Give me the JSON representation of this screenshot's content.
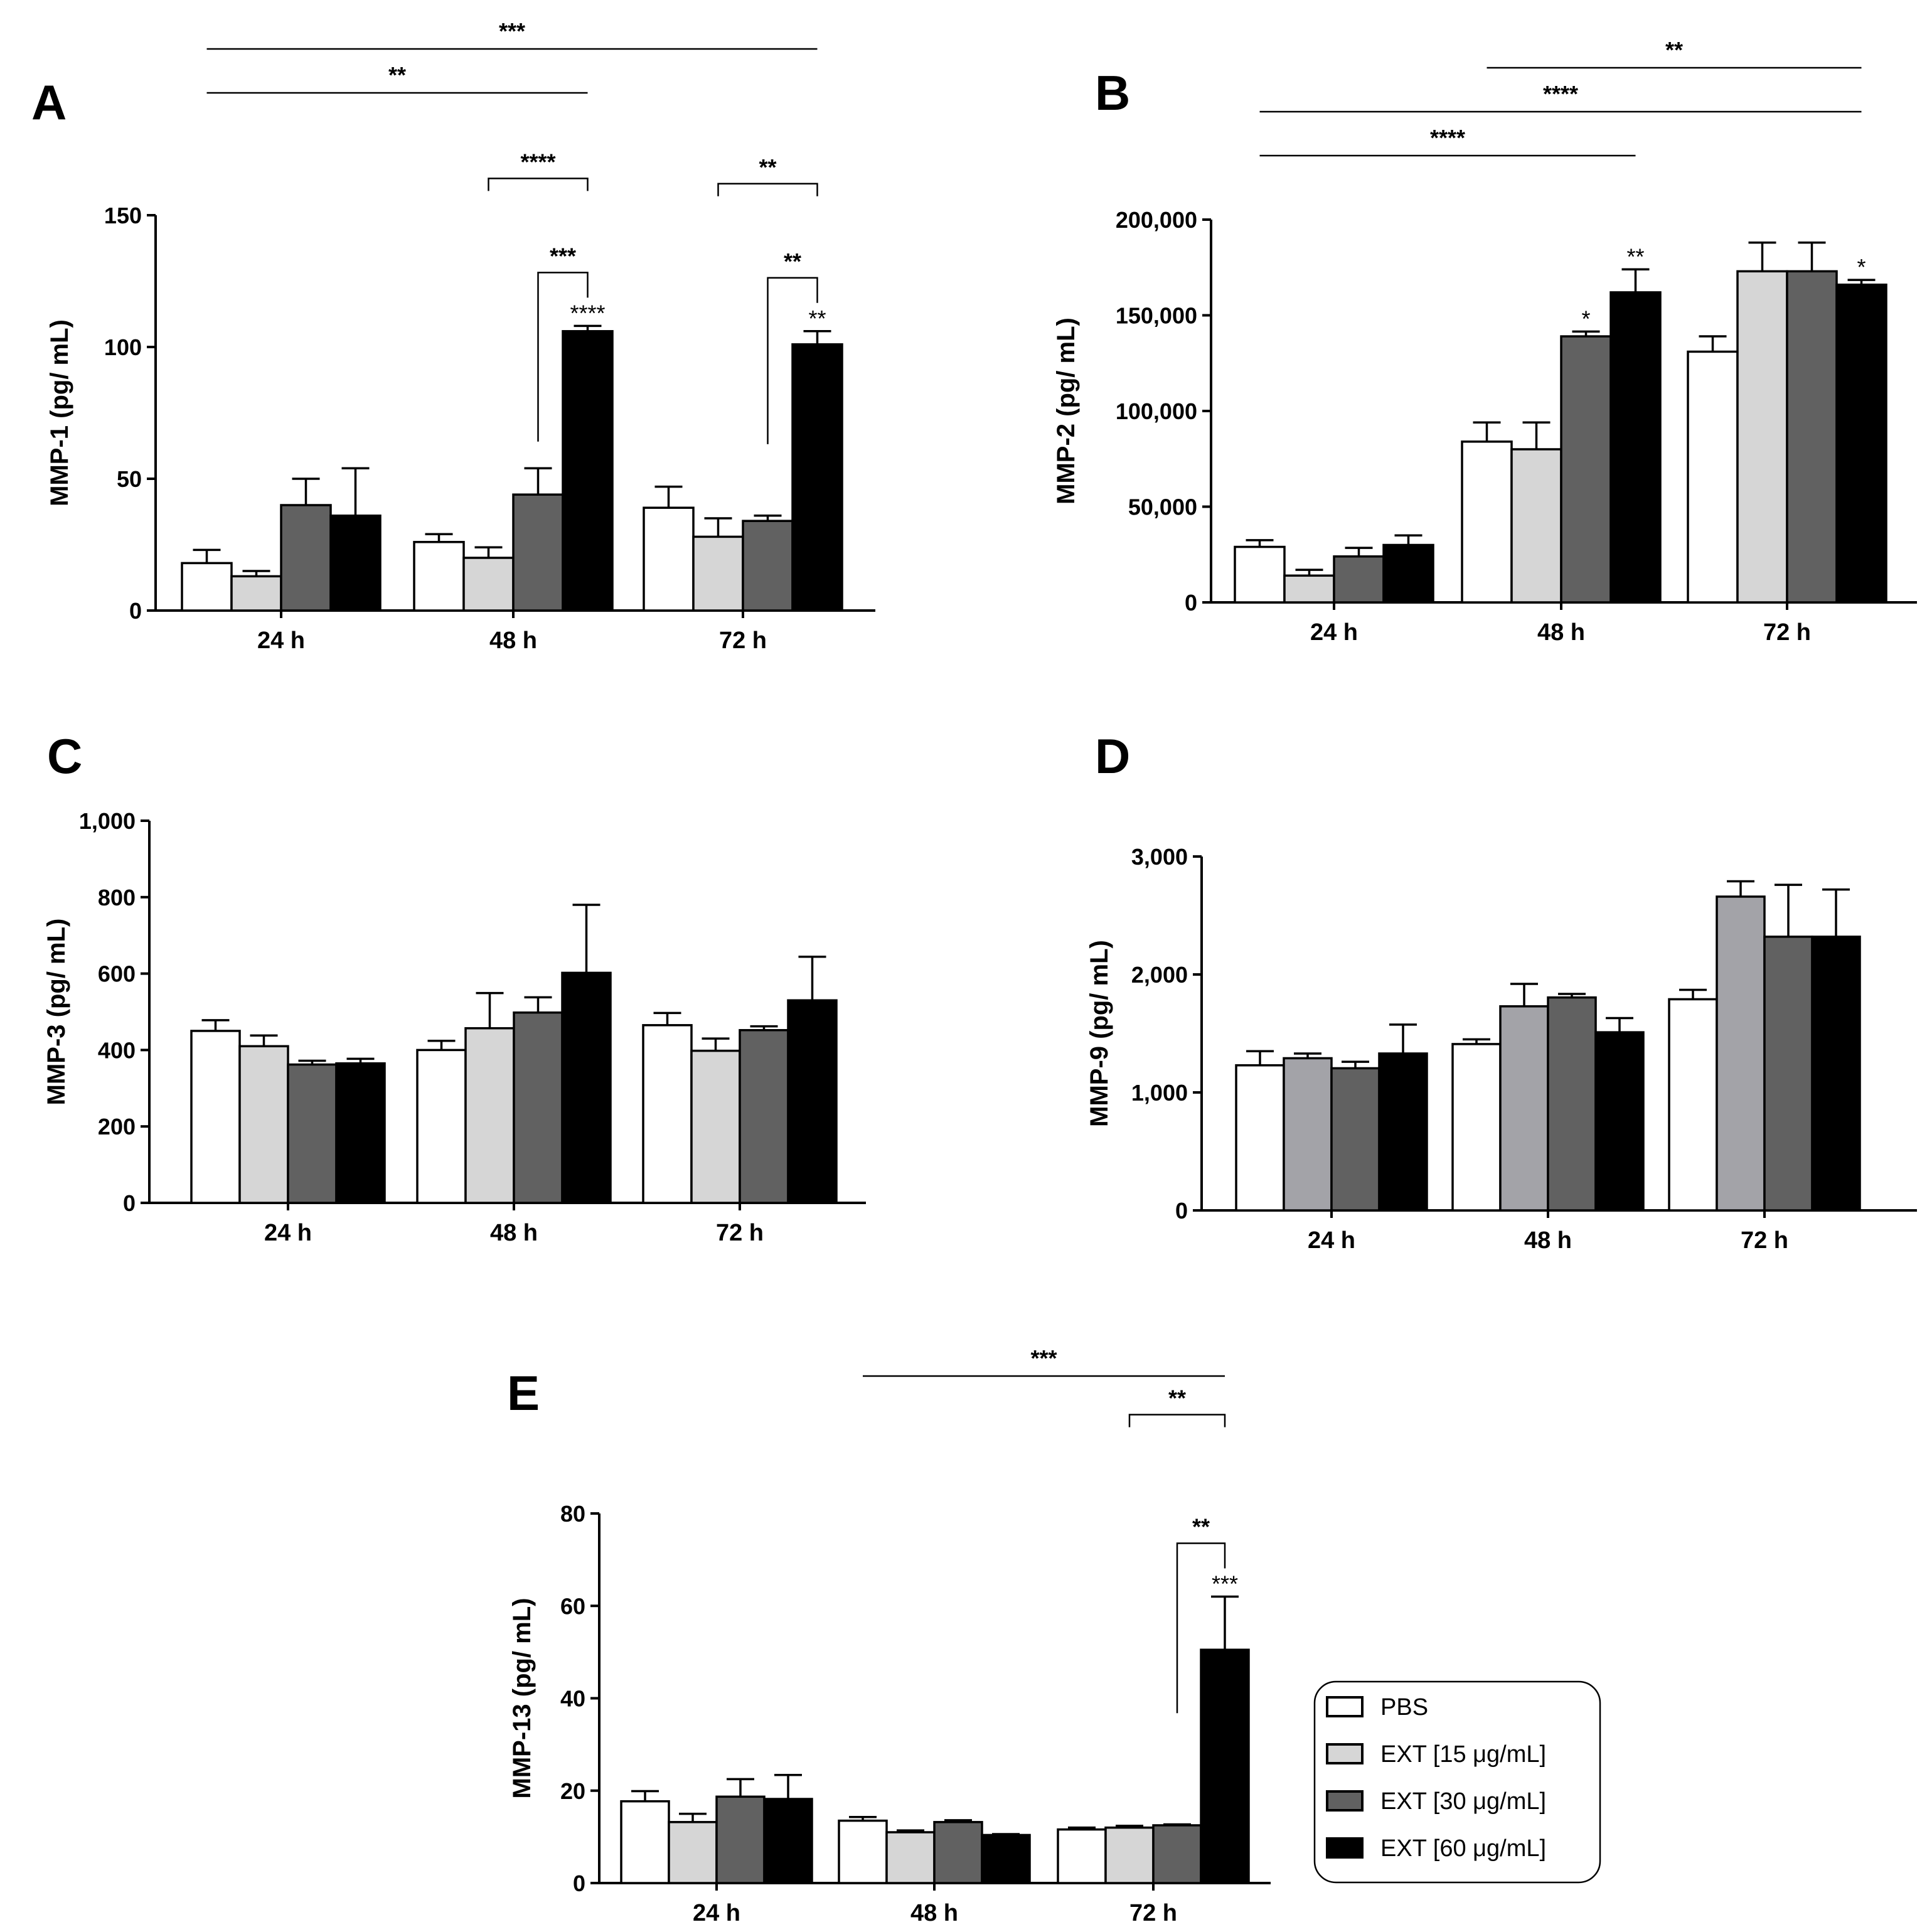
{
  "colors": {
    "PBS": "#ffffff",
    "EXT15": "#d6d6d6",
    "EXT30": "#616161",
    "EXT60": "#000000",
    "MMP9_EXT15": "#a3a3a8"
  },
  "legend": [
    {
      "key": "PBS",
      "label": "PBS"
    },
    {
      "key": "EXT15",
      "label": "EXT [15 μg/mL]"
    },
    {
      "key": "EXT30",
      "label": "EXT [30 μg/mL]"
    },
    {
      "key": "EXT60",
      "label": "EXT [60 μg/mL]"
    }
  ],
  "chart_data": [
    {
      "id": "A",
      "letter": "A",
      "type": "bar",
      "ylabel": "MMP-1 (pg/ mL)",
      "ylim": [
        0,
        150
      ],
      "yticks": [
        0,
        50,
        100,
        150
      ],
      "ytick_labels": [
        "0",
        "50",
        "100",
        "150"
      ],
      "categories": [
        "24 h",
        "48 h",
        "72 h"
      ],
      "series": [
        {
          "key": "PBS",
          "name": "PBS",
          "values": [
            18,
            26,
            39
          ],
          "errors": [
            5,
            3,
            8
          ]
        },
        {
          "key": "EXT15",
          "name": "EXT [15 μg/mL]",
          "values": [
            13,
            20,
            28
          ],
          "errors": [
            2,
            4,
            7
          ]
        },
        {
          "key": "EXT30",
          "name": "EXT [30 μg/mL]",
          "values": [
            40,
            44,
            34
          ],
          "errors": [
            10,
            10,
            2
          ]
        },
        {
          "key": "EXT60",
          "name": "EXT [60 μg/mL]",
          "values": [
            36,
            106,
            101
          ],
          "errors": [
            18,
            2,
            5
          ]
        }
      ],
      "bar_stars": [
        {
          "cat": 1,
          "s": 3,
          "text": "****"
        },
        {
          "cat": 2,
          "s": 3,
          "text": "**"
        }
      ],
      "brackets": [
        {
          "cat": 1,
          "s1": 2,
          "s2": 3,
          "level": 0,
          "text": "***"
        },
        {
          "cat": 1,
          "s1": 1,
          "s2": 3,
          "level": 1,
          "text": "****"
        },
        {
          "cat": 2,
          "s1": 2,
          "s2": 3,
          "level": 0,
          "text": "**"
        },
        {
          "cat": 2,
          "s1": 1,
          "s2": 3,
          "level": 1,
          "text": "**"
        }
      ],
      "lines": [
        {
          "c1": 0,
          "s1": 0,
          "c2": 1,
          "s2": 3,
          "level": 0,
          "text": "**"
        },
        {
          "c1": 0,
          "s1": 0,
          "c2": 2,
          "s2": 3,
          "level": 1,
          "text": "***"
        }
      ]
    },
    {
      "id": "B",
      "letter": "B",
      "type": "bar",
      "ylabel": "MMP-2 (pg/ mL)",
      "ylim": [
        0,
        200000
      ],
      "yticks": [
        0,
        50000,
        100000,
        150000,
        200000
      ],
      "ytick_labels": [
        "0",
        "50,000",
        "100,000",
        "150,000",
        "200,000"
      ],
      "categories": [
        "24 h",
        "48 h",
        "72 h"
      ],
      "series": [
        {
          "key": "PBS",
          "name": "PBS",
          "values": [
            29000,
            84000,
            131000
          ],
          "errors": [
            3500,
            10000,
            8000
          ]
        },
        {
          "key": "EXT15",
          "name": "EXT [15 μg/mL]",
          "values": [
            14000,
            80000,
            173000
          ],
          "errors": [
            3000,
            14000,
            15000
          ]
        },
        {
          "key": "EXT30",
          "name": "EXT [30 μg/mL]",
          "values": [
            24000,
            139000,
            173000
          ],
          "errors": [
            4500,
            2500,
            15000
          ]
        },
        {
          "key": "EXT60",
          "name": "EXT [60 μg/mL]",
          "values": [
            30000,
            162000,
            166000
          ],
          "errors": [
            5000,
            12000,
            2500
          ]
        }
      ],
      "bar_stars": [
        {
          "cat": 1,
          "s": 2,
          "text": "*"
        },
        {
          "cat": 1,
          "s": 3,
          "text": "**"
        },
        {
          "cat": 2,
          "s": 3,
          "text": "*"
        }
      ],
      "brackets": [],
      "lines": [
        {
          "c1": 0,
          "s1": 0,
          "c2": 1,
          "s2": 3,
          "level": 0,
          "text": "****"
        },
        {
          "c1": 0,
          "s1": 0,
          "c2": 2,
          "s2": 3,
          "level": 1,
          "text": "****"
        },
        {
          "c1": 1,
          "s1": 0,
          "c2": 2,
          "s2": 3,
          "level": 2,
          "text": "**"
        }
      ]
    },
    {
      "id": "C",
      "letter": "C",
      "type": "bar",
      "ylabel": "MMP-3 (pg/ mL)",
      "ylim": [
        0,
        1000
      ],
      "yticks": [
        0,
        200,
        400,
        600,
        800,
        1000
      ],
      "ytick_labels": [
        "0",
        "200",
        "400",
        "600",
        "800",
        "1,000"
      ],
      "categories": [
        "24 h",
        "48 h",
        "72 h"
      ],
      "series": [
        {
          "key": "PBS",
          "name": "PBS",
          "values": [
            450,
            400,
            465
          ],
          "errors": [
            28,
            24,
            32
          ]
        },
        {
          "key": "EXT15",
          "name": "EXT [15 μg/mL]",
          "values": [
            410,
            457,
            398
          ],
          "errors": [
            28,
            92,
            32
          ]
        },
        {
          "key": "EXT30",
          "name": "EXT [30 μg/mL]",
          "values": [
            362,
            498,
            452
          ],
          "errors": [
            10,
            40,
            10
          ]
        },
        {
          "key": "EXT60",
          "name": "EXT [60 μg/mL]",
          "values": [
            365,
            602,
            530
          ],
          "errors": [
            12,
            178,
            114
          ]
        }
      ],
      "bar_stars": [],
      "brackets": [],
      "lines": []
    },
    {
      "id": "D",
      "letter": "D",
      "type": "bar",
      "ylabel": "MMP-9 (pg/ mL)",
      "ylim": [
        0,
        3000
      ],
      "yticks": [
        0,
        1000,
        2000,
        3000
      ],
      "ytick_labels": [
        "0",
        "1,000",
        "2,000",
        "3,000"
      ],
      "categories": [
        "24 h",
        "48 h",
        "72 h"
      ],
      "series": [
        {
          "key": "PBS",
          "name": "PBS",
          "values": [
            1230,
            1410,
            1790
          ],
          "errors": [
            120,
            40,
            80
          ]
        },
        {
          "key": "MMP9_EXT15",
          "name": "EXT [15 μg/mL]",
          "values": [
            1290,
            1730,
            2660
          ],
          "errors": [
            40,
            190,
            130
          ]
        },
        {
          "key": "EXT30",
          "name": "EXT [30 μg/mL]",
          "values": [
            1205,
            1805,
            2320
          ],
          "errors": [
            55,
            30,
            440
          ]
        },
        {
          "key": "EXT60",
          "name": "EXT [60 μg/mL]",
          "values": [
            1330,
            1510,
            2320
          ],
          "errors": [
            245,
            120,
            400
          ]
        }
      ],
      "bar_stars": [],
      "brackets": [],
      "lines": []
    },
    {
      "id": "E",
      "letter": "E",
      "type": "bar",
      "ylabel": "MMP-13 (pg/ mL)",
      "ylim": [
        0,
        80
      ],
      "yticks": [
        0,
        20,
        40,
        60,
        80
      ],
      "ytick_labels": [
        "0",
        "20",
        "40",
        "60",
        "80"
      ],
      "categories": [
        "24 h",
        "48 h",
        "72 h"
      ],
      "series": [
        {
          "key": "PBS",
          "name": "PBS",
          "values": [
            17.7,
            13.5,
            11.6
          ],
          "errors": [
            2.2,
            0.8,
            0.4
          ]
        },
        {
          "key": "EXT15",
          "name": "EXT [15 μg/mL]",
          "values": [
            13.2,
            11.0,
            12.0
          ],
          "errors": [
            1.8,
            0.4,
            0.4
          ]
        },
        {
          "key": "EXT30",
          "name": "EXT [30 μg/mL]",
          "values": [
            18.7,
            13.2,
            12.5
          ],
          "errors": [
            3.8,
            0.4,
            0.2
          ]
        },
        {
          "key": "EXT60",
          "name": "EXT [60 μg/mL]",
          "values": [
            18.2,
            10.4,
            50.5
          ],
          "errors": [
            5.2,
            0.2,
            11.5
          ]
        }
      ],
      "bar_stars": [
        {
          "cat": 2,
          "s": 3,
          "text": "***"
        }
      ],
      "brackets": [
        {
          "cat": 2,
          "s1": 2,
          "s2": 3,
          "level": 0,
          "text": "**"
        },
        {
          "cat": 2,
          "s1": 1,
          "s2": 3,
          "level": 1,
          "text": "**"
        }
      ],
      "lines": [
        {
          "c1": 1,
          "s1": 0,
          "c2": 2,
          "s2": 3,
          "level": 0,
          "text": "***"
        }
      ]
    }
  ]
}
